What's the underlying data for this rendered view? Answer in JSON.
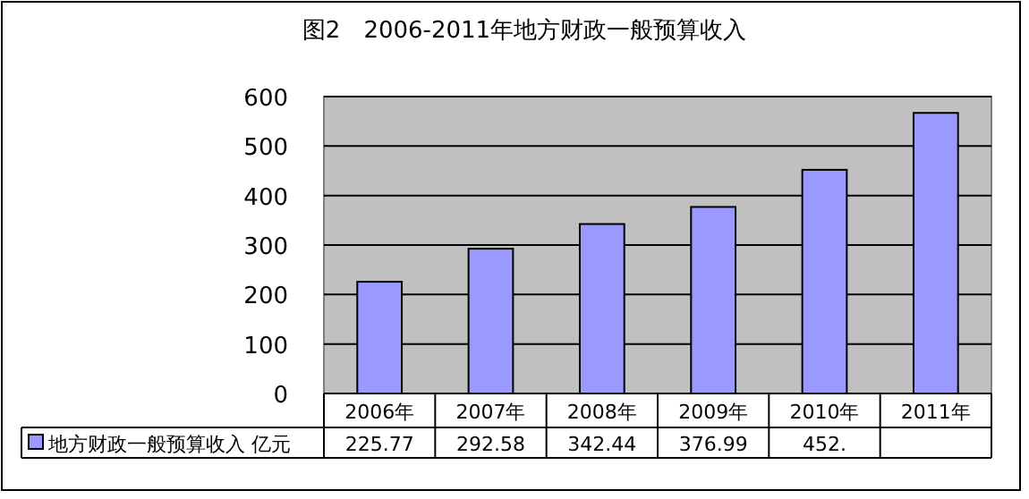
{
  "chart_data": {
    "type": "bar",
    "title": "图2　2006-2011年地方财政一般预算收入",
    "categories": [
      "2006年",
      "2007年",
      "2008年",
      "2009年",
      "2010年",
      "2011年"
    ],
    "series": [
      {
        "name": "地方财政一般预算收入  亿元",
        "color": "#9999ff",
        "values": [
          225.77,
          292.58,
          342.44,
          376.99,
          452,
          567
        ],
        "value_labels": [
          "225.77",
          "292.58",
          "342.44",
          "376.99",
          "452.",
          null
        ]
      }
    ],
    "ylim": [
      0,
      600
    ],
    "yticks": [
      0,
      100,
      200,
      300,
      400,
      500,
      600
    ],
    "grid": "y",
    "legend": "bottom left"
  }
}
